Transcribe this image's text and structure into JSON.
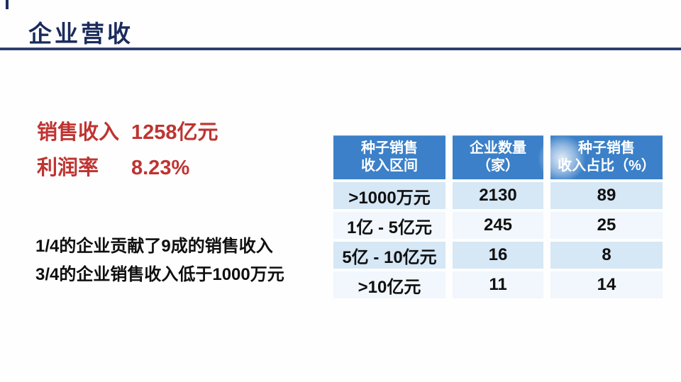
{
  "slide": {
    "title": "企业营收",
    "stats": [
      {
        "label": "销售收入",
        "value": "1258亿元"
      },
      {
        "label": "利润率",
        "value": "8.23%"
      }
    ],
    "notes": [
      "1/4的企业贡献了9成的销售收入",
      "3/4的企业销售收入低于1000万元"
    ]
  },
  "chart_data": {
    "type": "table",
    "columns": [
      {
        "line1": "种子销售",
        "line2": "收入区间"
      },
      {
        "line1": "企业数量",
        "line2": "（家）"
      },
      {
        "line1": "种子销售",
        "line2": "收入占比（%）"
      }
    ],
    "rows": [
      {
        "range": ">1000万元",
        "count": 2130,
        "share_pct": 89
      },
      {
        "range": "1亿 - 5亿元",
        "count": 245,
        "share_pct": 25
      },
      {
        "range": "5亿 - 10亿元",
        "count": 16,
        "share_pct": 8
      },
      {
        "range": ">10亿元",
        "count": 11,
        "share_pct": 14
      }
    ]
  },
  "colors": {
    "title_navy": "#1b2b5c",
    "rule_navy": "#233468",
    "stat_red": "#be3431",
    "note_black": "#0f0f0f",
    "table_header_blue": "#3b80c8",
    "row_light_blue": "#d6e7f5",
    "row_pale_blue": "#f1f7fc",
    "background": "#fefefe"
  }
}
